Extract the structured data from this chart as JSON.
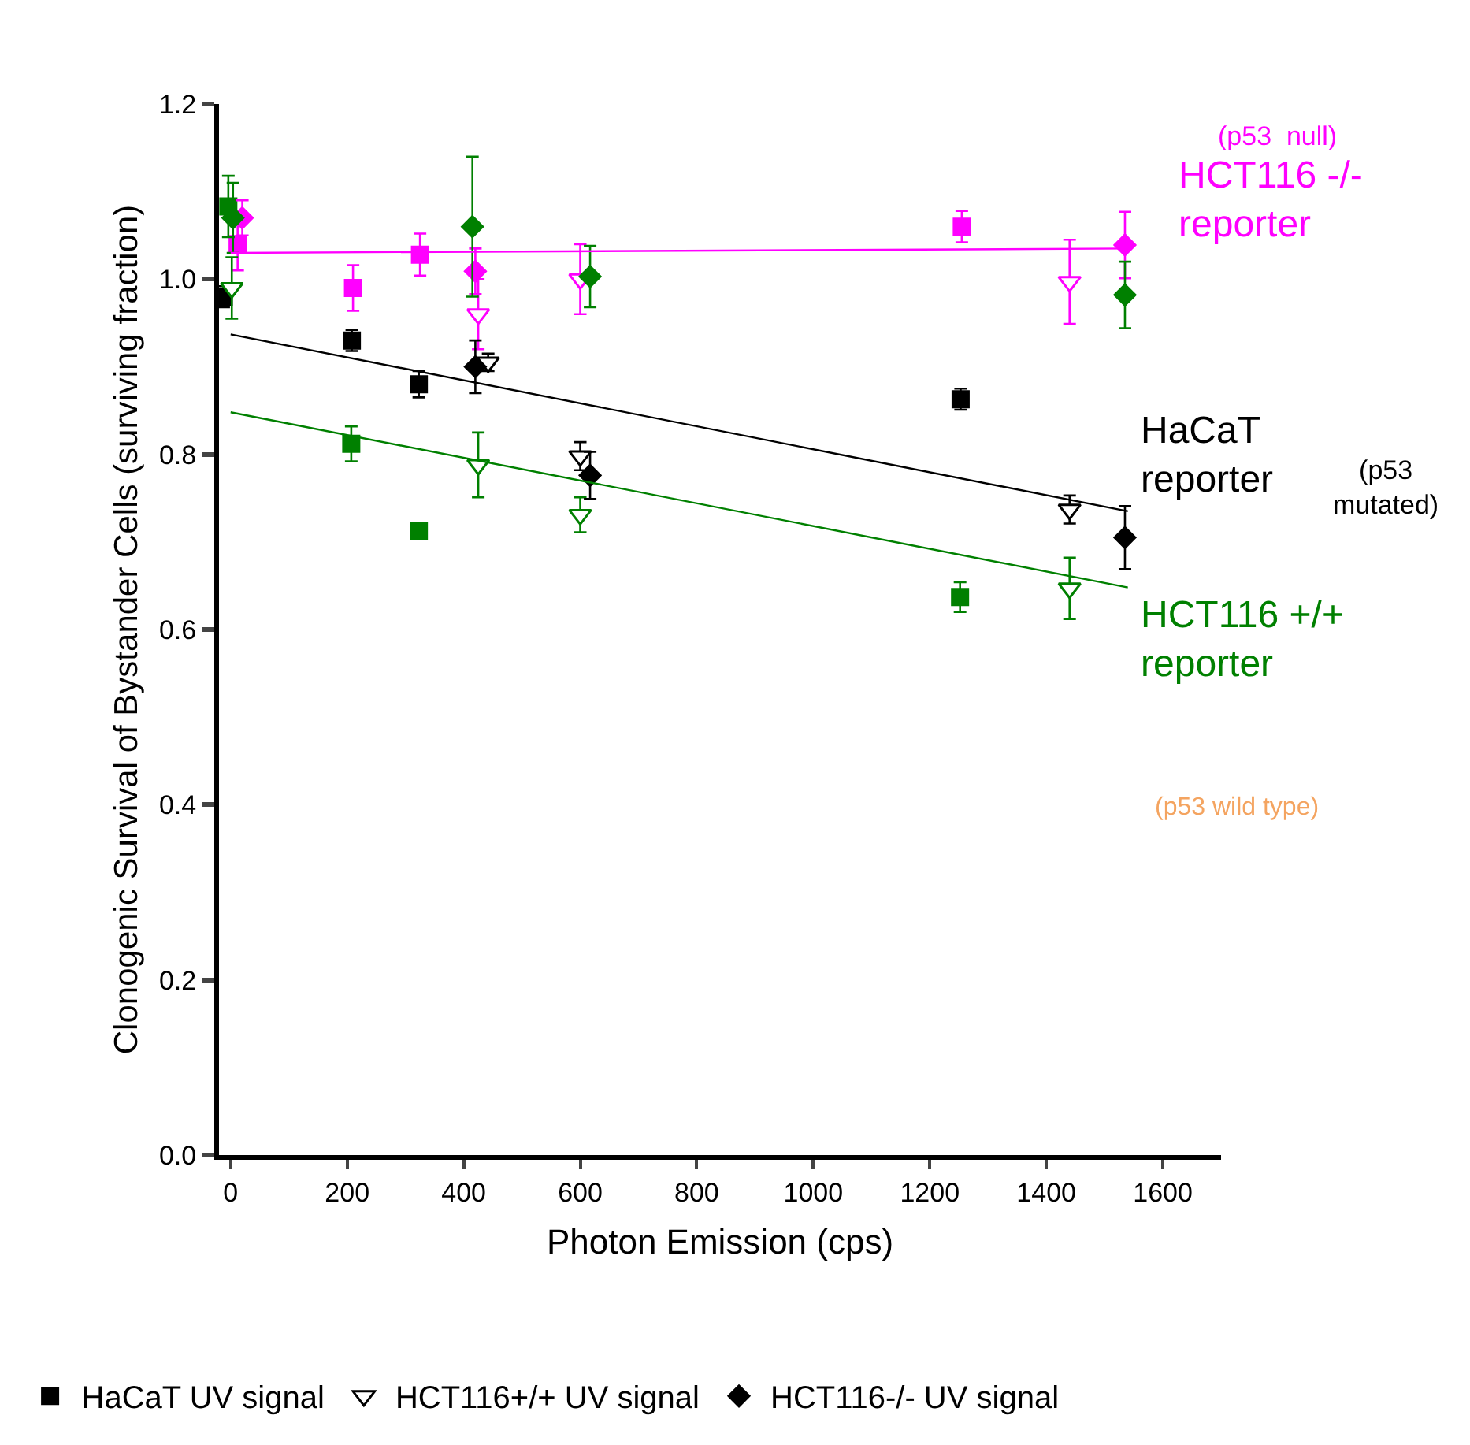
{
  "chart_data": {
    "type": "scatter",
    "xlabel": "Photon Emission (cps)",
    "ylabel": "Clonogenic Survival of Bystander Cells (surviving fraction)",
    "xlim": [
      -20,
      1700
    ],
    "xticks": [
      0,
      200,
      400,
      600,
      800,
      1000,
      1200,
      1400,
      1600
    ],
    "ylim": [
      0,
      1.2
    ],
    "yticks": [
      {
        "value": 0,
        "label": "0.0"
      },
      0.2,
      0.4,
      0.6,
      0.8,
      {
        "value": 1,
        "label": "1.0"
      },
      1.2
    ],
    "legend": "bottom",
    "series": [
      {
        "name": "HaCaT UV signal",
        "marker": "square",
        "x": [
          -12,
          208,
          323,
          1253,
          12,
          210,
          325,
          1255,
          -4,
          207,
          323,
          1252
        ],
        "values": [
          0.98,
          0.93,
          0.88,
          0.863,
          1.04,
          0.99,
          1.028,
          1.06,
          1.083,
          0.812,
          0.713,
          0.637
        ],
        "errors": [
          0.012,
          0.012,
          0.015,
          0.012,
          0.03,
          0.026,
          0.024,
          0.018,
          0.035,
          0.02,
          null,
          0.017
        ],
        "colors": [
          "#000000",
          "#000000",
          "#000000",
          "#000000",
          "#ff00ff",
          "#ff00ff",
          "#ff00ff",
          "#ff00ff",
          "#008000",
          "#008000",
          "#008000",
          "#008000"
        ]
      },
      {
        "name": "HCT116+/+ UV signal",
        "marker": "triangle",
        "x": [
          442,
          600,
          1440,
          425,
          600,
          1440,
          2,
          425,
          600,
          1440
        ],
        "values": [
          0.905,
          0.798,
          0.737,
          0.96,
          1.0,
          0.997,
          0.99,
          0.788,
          0.731,
          0.647
        ],
        "errors": [
          0.01,
          0.016,
          0.016,
          0.04,
          0.04,
          0.048,
          0.035,
          0.037,
          0.02,
          0.035
        ],
        "colors": [
          "#000000",
          "#000000",
          "#000000",
          "#ff00ff",
          "#ff00ff",
          "#ff00ff",
          "#008000",
          "#008000",
          "#008000",
          "#008000"
        ]
      },
      {
        "name": "HCT116-/- UV signal",
        "marker": "diamond",
        "x": [
          420,
          617,
          1535,
          20,
          420,
          1535,
          4,
          415,
          617,
          1535
        ],
        "values": [
          0.9,
          0.776,
          0.705,
          1.07,
          1.009,
          1.039,
          1.07,
          1.06,
          1.003,
          0.982
        ],
        "errors": [
          0.03,
          0.027,
          0.036,
          0.02,
          0.026,
          0.038,
          0.04,
          0.08,
          0.035,
          0.038
        ],
        "colors": [
          "#000000",
          "#000000",
          "#000000",
          "#ff00ff",
          "#ff00ff",
          "#ff00ff",
          "#008000",
          "#008000",
          "#008000",
          "#008000"
        ]
      },
      {
        "type": "line",
        "name": "HCT116 -/-\nreporter",
        "color": "#ff00ff",
        "x": [
          0,
          1540
        ],
        "values": [
          1.03,
          1.035
        ]
      },
      {
        "type": "line",
        "name": "HaCaT\nreporter",
        "color": "#000000",
        "x": [
          0,
          1540
        ],
        "values": [
          0.937,
          0.735
        ]
      },
      {
        "type": "line",
        "name": "HCT116 +/+\nreporter",
        "color": "#008000",
        "x": [
          0,
          1540
        ],
        "values": [
          0.848,
          0.648
        ]
      }
    ],
    "annotations": [
      "(p53  null)",
      "(p53\nmutated)",
      "(p53 wild type)"
    ]
  }
}
